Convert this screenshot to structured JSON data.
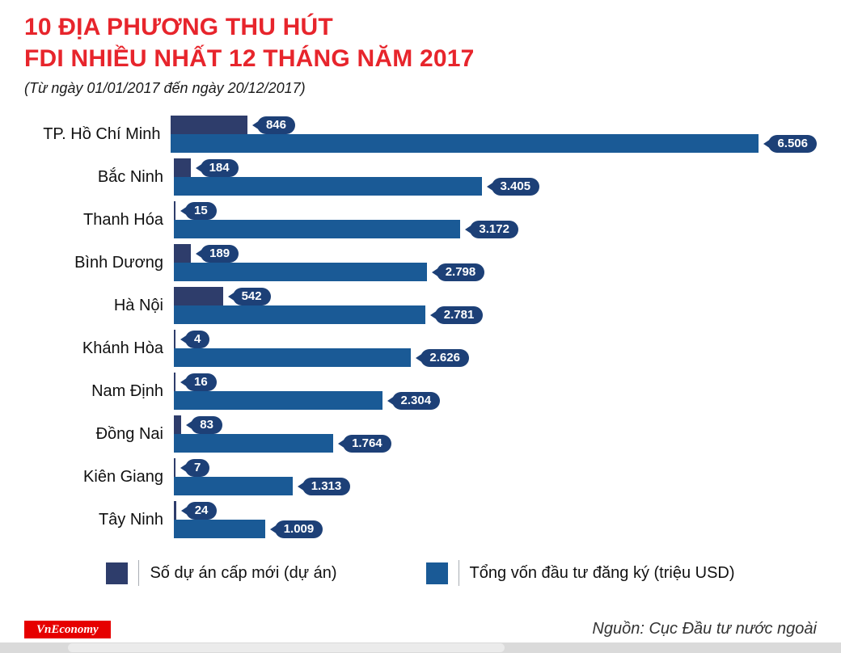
{
  "header": {
    "title_line1": "10 ĐỊA PHƯƠNG THU HÚT",
    "title_line2": "FDI NHIỀU NHẤT 12 THÁNG NĂM 2017",
    "subtitle": "(Từ ngày 01/01/2017 đến ngày 20/12/2017)"
  },
  "chart_data": {
    "type": "bar",
    "orientation": "horizontal",
    "title": "10 địa phương thu hút FDI nhiều nhất 12 tháng năm 2017",
    "subtitle": "Từ ngày 01/01/2017 đến ngày 20/12/2017",
    "categories": [
      "TP. Hồ Chí Minh",
      "Bắc Ninh",
      "Thanh Hóa",
      "Bình Dương",
      "Hà Nội",
      "Khánh Hòa",
      "Nam Định",
      "Đồng Nai",
      "Kiên Giang",
      "Tây Ninh"
    ],
    "series": [
      {
        "name": "Số dự án cấp mới (dự án)",
        "color": "#2e3d6b",
        "values": [
          846,
          184,
          15,
          189,
          542,
          4,
          16,
          83,
          7,
          24
        ],
        "value_labels": [
          "846",
          "184",
          "15",
          "189",
          "542",
          "4",
          "16",
          "83",
          "7",
          "24"
        ]
      },
      {
        "name": "Tổng vốn đầu tư đăng ký (triệu USD)",
        "color": "#1a5a96",
        "values": [
          6506,
          3405,
          3172,
          2798,
          2781,
          2626,
          2304,
          1764,
          1313,
          1009
        ],
        "value_labels": [
          "6.506",
          "3.405",
          "3.172",
          "2.798",
          "2.781",
          "2.626",
          "2.304",
          "1.764",
          "1.313",
          "1.009"
        ]
      }
    ],
    "value_axis_range": [
      0,
      6506
    ],
    "axes_hidden": true,
    "grid": false,
    "data_labels": "pill callouts at bar ends",
    "legend_position": "bottom"
  },
  "legend": {
    "items": [
      {
        "label": "Số dự án cấp mới (dự án)",
        "color": "#2e3d6b"
      },
      {
        "label": "Tổng vốn đầu tư đăng ký (triệu USD)",
        "color": "#1a5a96"
      }
    ]
  },
  "footer": {
    "brand": "VnEconomy",
    "source": "Nguồn: Cục Đầu tư nước ngoài"
  },
  "colors": {
    "title": "#e7252c",
    "projects": "#2e3d6b",
    "capital": "#1a5a96",
    "pill": "#1d4077",
    "brand_bg": "#e60000"
  }
}
